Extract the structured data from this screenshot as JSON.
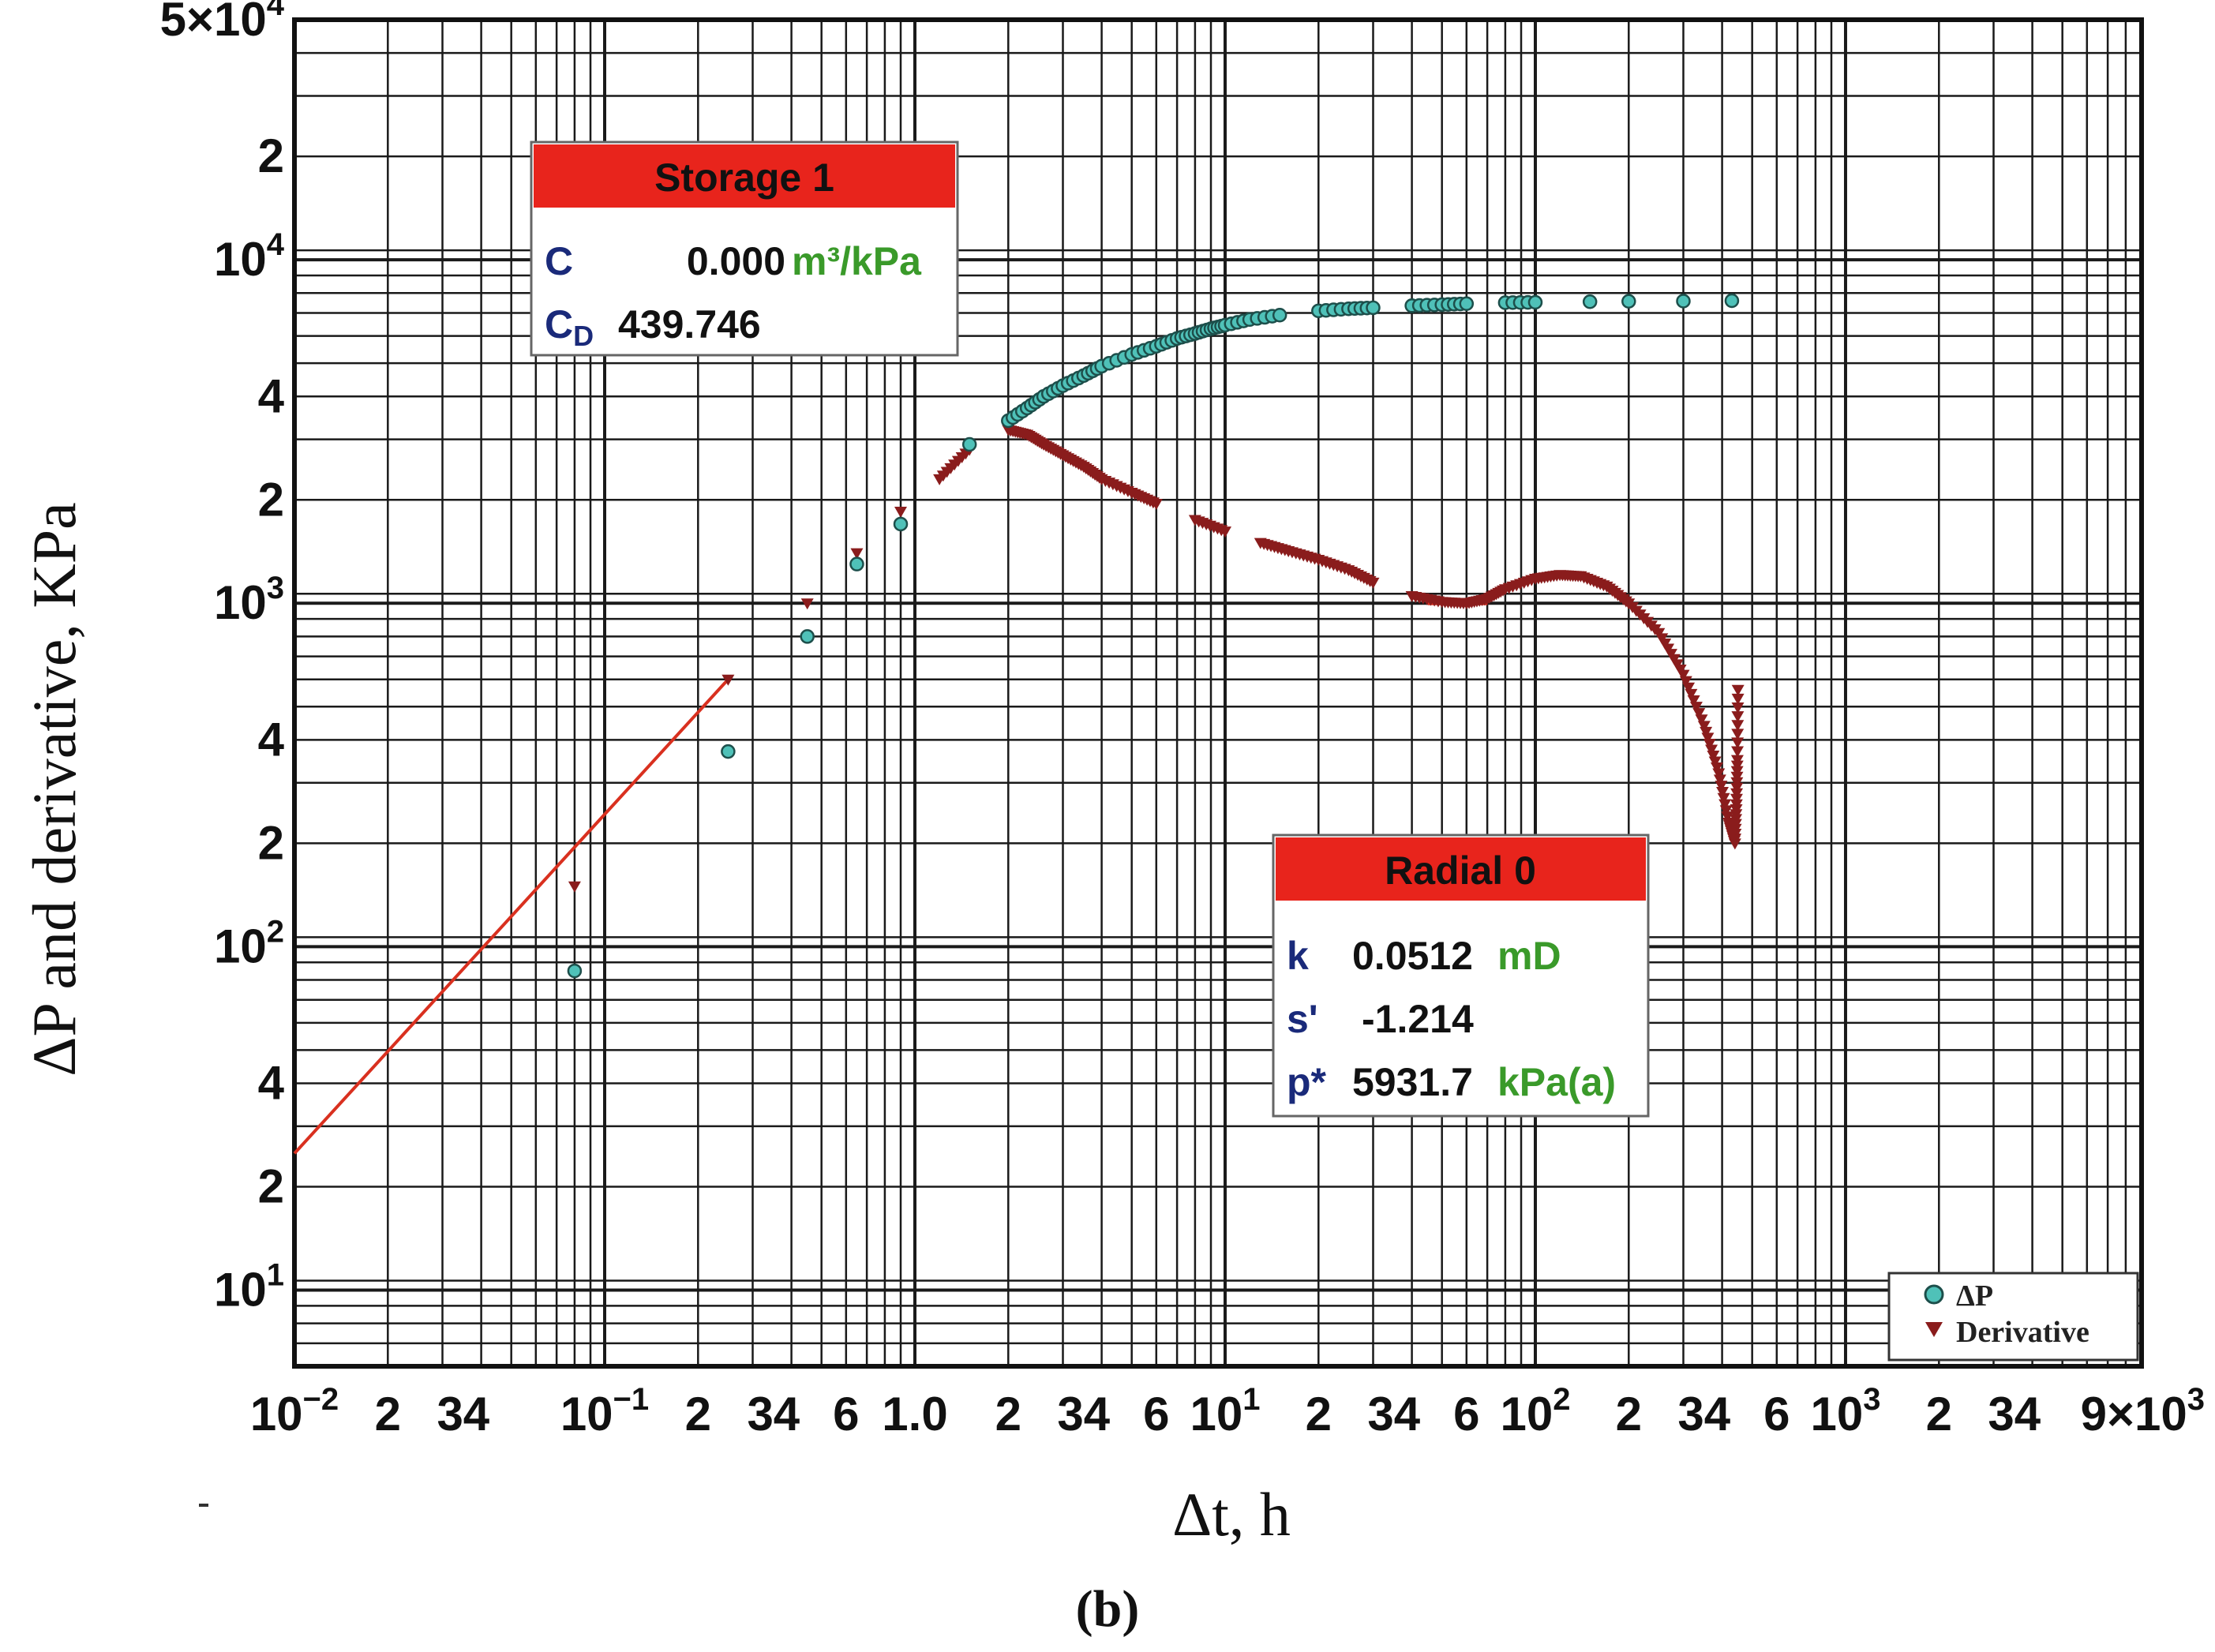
{
  "chart_data": {
    "type": "scatter",
    "xscale": "log",
    "yscale": "log",
    "xlim": [
      0.01,
      9000
    ],
    "ylim": [
      6,
      50000
    ],
    "grid": true,
    "xlabel": "Δt, h",
    "ylabel": "ΔP and derivative, KPa",
    "caption": "(b)",
    "x_ticks": [
      {
        "v": 0.01,
        "base": "10",
        "exp": "−2"
      },
      {
        "v": 0.02,
        "label": "2"
      },
      {
        "v": 0.035,
        "label": "34"
      },
      {
        "v": 0.1,
        "base": "10",
        "exp": "−1"
      },
      {
        "v": 0.2,
        "label": "2"
      },
      {
        "v": 0.35,
        "label": "34"
      },
      {
        "v": 0.6,
        "label": "6"
      },
      {
        "v": 1.0,
        "label": "1.0"
      },
      {
        "v": 2,
        "label": "2"
      },
      {
        "v": 3.5,
        "label": "34"
      },
      {
        "v": 6,
        "label": "6"
      },
      {
        "v": 10,
        "base": "10",
        "exp": "1"
      },
      {
        "v": 20,
        "label": "2"
      },
      {
        "v": 35,
        "label": "34"
      },
      {
        "v": 60,
        "label": "6"
      },
      {
        "v": 100,
        "base": "10",
        "exp": "2"
      },
      {
        "v": 200,
        "label": "2"
      },
      {
        "v": 350,
        "label": "34"
      },
      {
        "v": 600,
        "label": "6"
      },
      {
        "v": 1000,
        "base": "10",
        "exp": "3"
      },
      {
        "v": 2000,
        "label": "2"
      },
      {
        "v": 3500,
        "label": "34"
      },
      {
        "v": 9000,
        "label": "9×10",
        "exp": "3"
      }
    ],
    "y_ticks": [
      {
        "v": 10,
        "base": "10",
        "exp": "1"
      },
      {
        "v": 20,
        "label": "2"
      },
      {
        "v": 40,
        "label": "4"
      },
      {
        "v": 100,
        "base": "10",
        "exp": "2"
      },
      {
        "v": 200,
        "label": "2"
      },
      {
        "v": 400,
        "label": "4"
      },
      {
        "v": 1000,
        "base": "10",
        "exp": "3"
      },
      {
        "v": 2000,
        "label": "2"
      },
      {
        "v": 4000,
        "label": "4"
      },
      {
        "v": 10000,
        "base": "10",
        "exp": "4"
      },
      {
        "v": 20000,
        "label": "2"
      },
      {
        "v": 50000,
        "label": "5×10",
        "exp": "4"
      }
    ],
    "series": [
      {
        "name": "ΔP",
        "marker": "circle",
        "color": "#4fc1b8",
        "points": [
          [
            0.08,
            85
          ],
          [
            0.25,
            370
          ],
          [
            0.45,
            800
          ],
          [
            0.65,
            1300
          ],
          [
            0.9,
            1700
          ],
          [
            1.5,
            2900
          ],
          [
            2.0,
            3400
          ],
          [
            2.3,
            3700
          ],
          [
            2.6,
            4000
          ],
          [
            3.0,
            4300
          ],
          [
            3.5,
            4600
          ],
          [
            4.0,
            4900
          ],
          [
            5,
            5300
          ],
          [
            6,
            5600
          ],
          [
            7,
            5900
          ],
          [
            8,
            6100
          ],
          [
            9,
            6300
          ],
          [
            10,
            6450
          ],
          [
            12,
            6700
          ],
          [
            15,
            6900
          ],
          [
            20,
            7100
          ],
          [
            25,
            7200
          ],
          [
            30,
            7250
          ],
          [
            40,
            7350
          ],
          [
            50,
            7400
          ],
          [
            60,
            7450
          ],
          [
            80,
            7500
          ],
          [
            100,
            7520
          ],
          [
            150,
            7550
          ],
          [
            200,
            7570
          ],
          [
            300,
            7580
          ],
          [
            430,
            7600
          ]
        ]
      },
      {
        "name": "Derivative",
        "marker": "triangle-down",
        "color": "#8a1c1c",
        "points": [
          [
            0.08,
            150
          ],
          [
            0.25,
            600
          ],
          [
            0.45,
            1000
          ],
          [
            0.65,
            1400
          ],
          [
            0.9,
            1850
          ],
          [
            1.2,
            2300
          ],
          [
            1.5,
            2800
          ],
          [
            2.0,
            3200
          ],
          [
            2.3,
            3100
          ],
          [
            2.6,
            2900
          ],
          [
            3.0,
            2700
          ],
          [
            3.5,
            2500
          ],
          [
            4.0,
            2300
          ],
          [
            5,
            2100
          ],
          [
            6,
            1950
          ],
          [
            8,
            1750
          ],
          [
            10,
            1620
          ],
          [
            13,
            1500
          ],
          [
            16,
            1420
          ],
          [
            20,
            1340
          ],
          [
            25,
            1250
          ],
          [
            30,
            1150
          ],
          [
            40,
            1050
          ],
          [
            50,
            1010
          ],
          [
            60,
            1000
          ],
          [
            70,
            1030
          ],
          [
            80,
            1100
          ],
          [
            100,
            1180
          ],
          [
            120,
            1210
          ],
          [
            140,
            1200
          ],
          [
            170,
            1120
          ],
          [
            200,
            1000
          ],
          [
            250,
            820
          ],
          [
            300,
            620
          ],
          [
            350,
            440
          ],
          [
            390,
            320
          ],
          [
            420,
            230
          ],
          [
            440,
            200
          ],
          [
            445,
            260
          ],
          [
            448,
            350
          ],
          [
            450,
            560
          ]
        ]
      }
    ],
    "fit_line": {
      "x": [
        0.01,
        0.25
      ],
      "y": [
        25,
        600
      ],
      "color": "#d9301f"
    },
    "radial_line": {
      "x": [
        45,
        70
      ],
      "y": [
        1000,
        1000
      ],
      "color": "#d9301f"
    },
    "legend": {
      "position": "bottom-right",
      "items": [
        "ΔP",
        "Derivative"
      ]
    },
    "annotations": [
      {
        "title": "Storage 1",
        "rows": [
          {
            "label": "C",
            "value": "0.000",
            "unit": "m³/kPa"
          },
          {
            "label": "CD",
            "value": "439.746",
            "unit": ""
          }
        ]
      },
      {
        "title": "Radial 0",
        "rows": [
          {
            "label": "k",
            "value": "0.0512",
            "unit": "mD"
          },
          {
            "label": "s'",
            "value": "-1.214",
            "unit": ""
          },
          {
            "label": "p*",
            "value": "5931.7",
            "unit": "kPa(a)"
          }
        ]
      }
    ]
  }
}
